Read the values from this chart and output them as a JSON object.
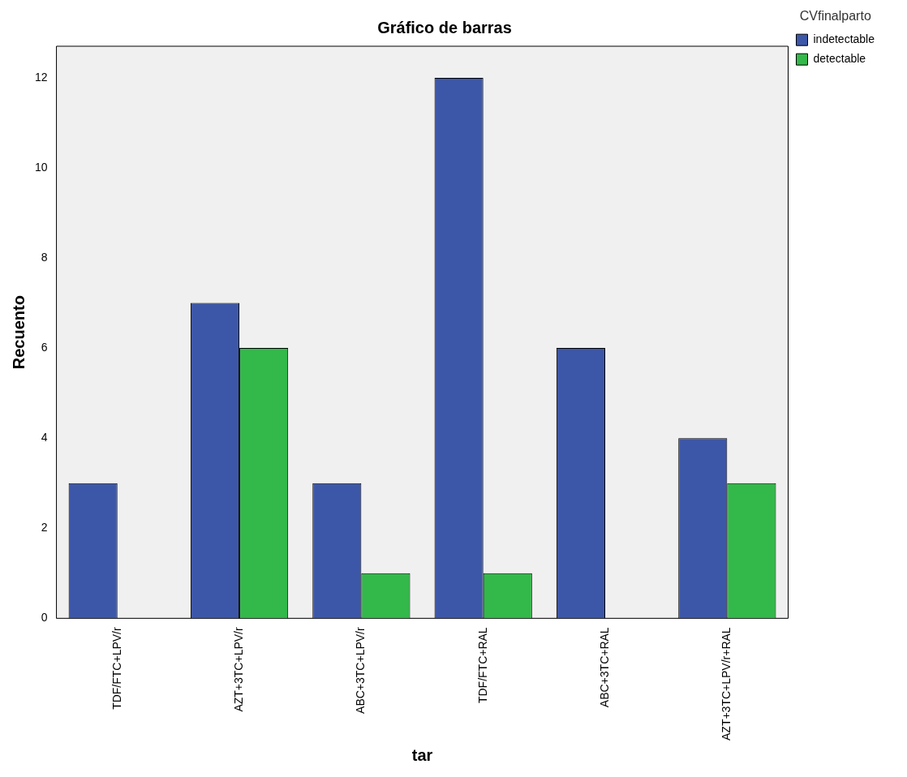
{
  "chart_data": {
    "type": "bar",
    "title": "Gráfico de barras",
    "xlabel": "tar",
    "ylabel": "Recuento",
    "legend_title": "CVfinalparto",
    "categories": [
      "TDF/FTC+LPV/r",
      "AZT+3TC+LPV/r",
      "ABC+3TC+LPV/r",
      "TDF/FTC+RAL",
      "ABC+3TC+RAL",
      "AZT+3TC+LPV/r+RAL"
    ],
    "series": [
      {
        "name": "indetectable",
        "color": "#3d57a8",
        "values": [
          3,
          7,
          3,
          12,
          6,
          4
        ]
      },
      {
        "name": "detectable",
        "color": "#33b84a",
        "values": [
          null,
          6,
          1,
          1,
          null,
          3
        ]
      }
    ],
    "ylim": [
      0,
      12.7
    ],
    "yticks": [
      0,
      2,
      4,
      6,
      8,
      10,
      12
    ],
    "grid": false,
    "legend": "right"
  }
}
